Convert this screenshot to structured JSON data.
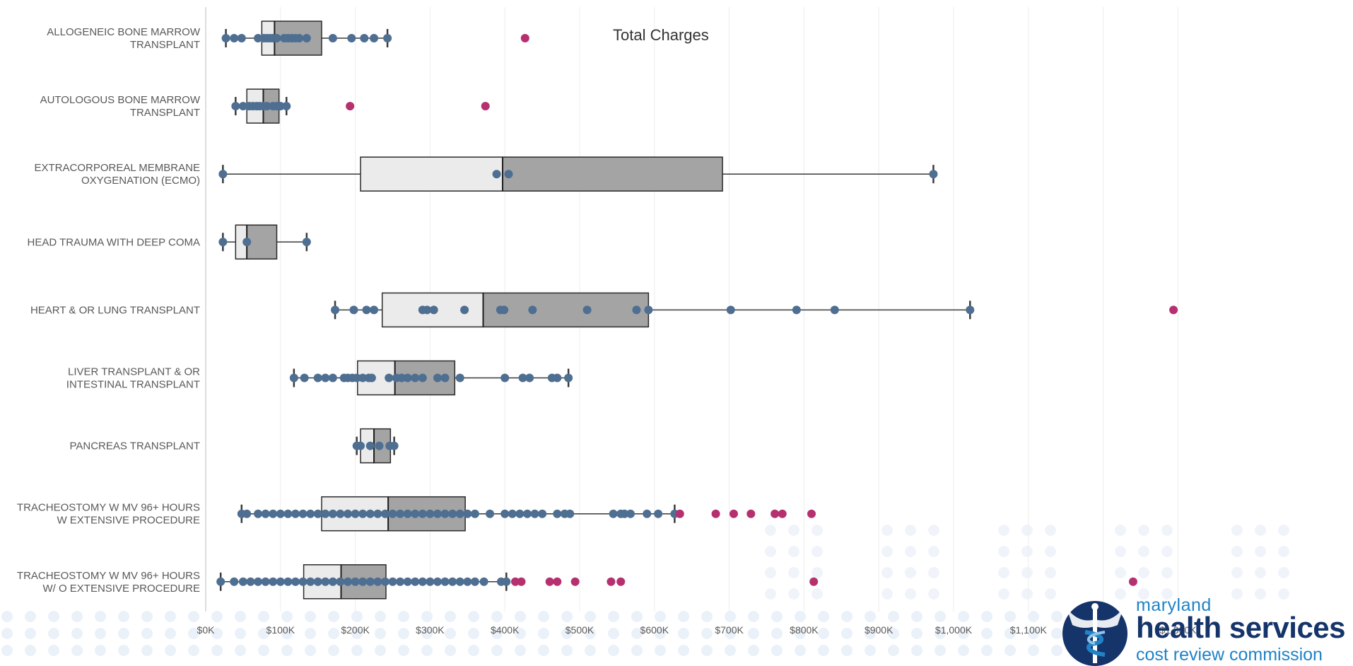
{
  "chart_data": {
    "type": "box",
    "title": "Total Charges",
    "xlabel": "",
    "ylabel": "",
    "xlim": [
      0,
      1540
    ],
    "x_unit": "$K",
    "ticks": [
      0,
      100,
      200,
      300,
      400,
      500,
      600,
      700,
      800,
      900,
      1000,
      1100,
      1200,
      1300
    ],
    "tick_labels": [
      "$0K",
      "$100K",
      "$200K",
      "$300K",
      "$400K",
      "$500K",
      "$600K",
      "$700K",
      "$800K",
      "$900K",
      "$1,000K",
      "$1,100K",
      "$1,200K",
      "$1,300K"
    ],
    "grid": "vertical",
    "colors": {
      "point": "#4e6f91",
      "outlier": "#b5306f",
      "box_lower": "#ebebeb",
      "box_upper": "#a4a4a4"
    },
    "categories": [
      {
        "label": [
          "ALLOGENEIC BONE MARROW",
          "TRANSPLANT"
        ],
        "whisker_low": 27,
        "q1": 75,
        "median": 92,
        "q3": 155,
        "whisker_high": 243,
        "points": [
          27,
          38,
          48,
          70,
          78,
          82,
          86,
          90,
          95,
          105,
          110,
          115,
          120,
          125,
          135,
          170,
          195,
          212,
          225,
          243
        ],
        "outliers": [
          427
        ]
      },
      {
        "label": [
          "AUTOLOGOUS BONE MARROW",
          "TRANSPLANT"
        ],
        "whisker_low": 40,
        "q1": 55,
        "median": 77,
        "q3": 98,
        "whisker_high": 108,
        "points": [
          40,
          50,
          58,
          63,
          68,
          72,
          77,
          82,
          90,
          95,
          100,
          108
        ],
        "outliers": [
          193,
          374
        ]
      },
      {
        "label": [
          "EXTRACORPOREAL MEMBRANE",
          "OXYGENATION (ECMO)"
        ],
        "whisker_low": 23,
        "q1": 207,
        "median": 397,
        "q3": 691,
        "whisker_high": 973,
        "points": [
          23,
          389,
          405,
          973
        ],
        "outliers": []
      },
      {
        "label": [
          "HEAD TRAUMA WITH DEEP COMA"
        ],
        "whisker_low": 23,
        "q1": 40,
        "median": 55,
        "q3": 95,
        "whisker_high": 135,
        "points": [
          23,
          55,
          135
        ],
        "outliers": []
      },
      {
        "label": [
          "HEART & OR LUNG TRANSPLANT"
        ],
        "whisker_low": 173,
        "q1": 236,
        "median": 371,
        "q3": 592,
        "whisker_high": 1022,
        "points": [
          173,
          198,
          215,
          225,
          290,
          296,
          305,
          346,
          394,
          399,
          437,
          510,
          576,
          592,
          702,
          790,
          841,
          1022
        ],
        "outliers": [
          1294
        ]
      },
      {
        "label": [
          "LIVER TRANSPLANT & OR",
          "INTESTINAL TRANSPLANT"
        ],
        "whisker_low": 118,
        "q1": 203,
        "median": 253,
        "q3": 333,
        "whisker_high": 485,
        "points": [
          118,
          132,
          150,
          160,
          170,
          185,
          190,
          196,
          202,
          210,
          218,
          222,
          245,
          255,
          262,
          270,
          280,
          290,
          310,
          320,
          340,
          400,
          424,
          433,
          463,
          470,
          485
        ],
        "outliers": []
      },
      {
        "label": [
          "PANCREAS TRANSPLANT"
        ],
        "whisker_low": 202,
        "q1": 207,
        "median": 225,
        "q3": 247,
        "whisker_high": 252,
        "points": [
          202,
          207,
          220,
          232,
          246,
          252
        ],
        "outliers": []
      },
      {
        "label": [
          "TRACHEOSTOMY W MV 96+ HOURS",
          "W EXTENSIVE PROCEDURE"
        ],
        "whisker_low": 48,
        "q1": 155,
        "median": 244,
        "q3": 347,
        "whisker_high": 627,
        "points": [
          48,
          55,
          70,
          80,
          90,
          100,
          110,
          120,
          130,
          140,
          150,
          160,
          170,
          180,
          190,
          200,
          210,
          220,
          230,
          240,
          250,
          260,
          270,
          280,
          290,
          300,
          310,
          320,
          330,
          340,
          350,
          360,
          380,
          400,
          410,
          420,
          430,
          440,
          450,
          470,
          480,
          487,
          545,
          555,
          560,
          568,
          590,
          605,
          627
        ],
        "outliers": [
          634,
          682,
          706,
          729,
          761,
          771,
          810
        ]
      },
      {
        "label": [
          "TRACHEOSTOMY W MV 96+ HOURS",
          "W/ O EXTENSIVE PROCEDURE"
        ],
        "whisker_low": 20,
        "q1": 131,
        "median": 181,
        "q3": 241,
        "whisker_high": 402,
        "points": [
          20,
          38,
          50,
          60,
          70,
          80,
          90,
          100,
          110,
          120,
          130,
          140,
          150,
          160,
          170,
          180,
          190,
          200,
          210,
          220,
          230,
          240,
          250,
          260,
          270,
          280,
          290,
          300,
          310,
          320,
          330,
          340,
          350,
          360,
          372,
          395,
          402
        ],
        "outliers": [
          414,
          422,
          460,
          470,
          494,
          542,
          555,
          813,
          1240
        ]
      }
    ]
  },
  "logo": {
    "line1": "maryland",
    "line2": "health services",
    "line3": "cost review commission",
    "colors": {
      "dark": "#15346a",
      "light": "#1f83c6",
      "dots": "#e3ebf6"
    }
  }
}
